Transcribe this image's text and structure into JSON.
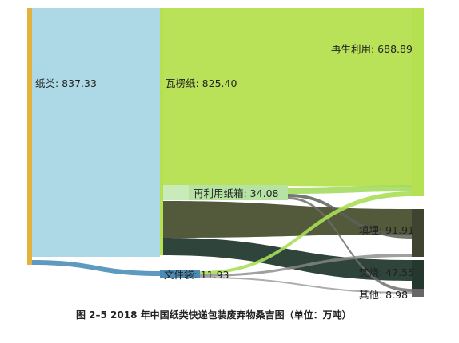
{
  "chart_data": {
    "type": "sankey",
    "caption": "图 2–5 2018 年中国纸类快递包装废弃物桑吉图（单位：万吨）",
    "nodes": [
      {
        "id": "paper",
        "label": "纸类: 837.33",
        "value": 837.33,
        "color": "#add8e6"
      },
      {
        "id": "carton",
        "label": "瓦楞纸: 825.40",
        "value": 825.4,
        "color": "#b5e04f"
      },
      {
        "id": "reuse",
        "label": "再利用纸箱: 34.08",
        "value": 34.08,
        "color": "#b6e3a3"
      },
      {
        "id": "bag",
        "label": "文件袋: 11.93",
        "value": 11.93,
        "color": "#4b8cb6"
      },
      {
        "id": "recycle",
        "label": "再生利用: 688.89",
        "value": 688.89,
        "color": "#b5e04f"
      },
      {
        "id": "landfill",
        "label": "填埋: 91.91",
        "value": 91.91,
        "color": "#3f4430"
      },
      {
        "id": "burn",
        "label": "焚烧: 47.55",
        "value": 47.55,
        "color": "#24382f"
      },
      {
        "id": "other",
        "label": "其他: 8.98",
        "value": 8.98,
        "color": "#666666"
      }
    ],
    "links": [
      {
        "source": "paper",
        "target": "carton",
        "value": 825.4
      },
      {
        "source": "paper",
        "target": "bag",
        "value": 11.93
      },
      {
        "source": "carton",
        "target": "recycle",
        "value": 675.0
      },
      {
        "source": "carton",
        "target": "reuse",
        "value": 34.08
      },
      {
        "source": "carton",
        "target": "landfill",
        "value": 69.0
      },
      {
        "source": "carton",
        "target": "burn",
        "value": 47.32
      },
      {
        "source": "reuse",
        "target": "recycle",
        "value": 12.0
      },
      {
        "source": "reuse",
        "target": "landfill",
        "value": 13.1
      },
      {
        "source": "reuse",
        "target": "other",
        "value": 8.98
      },
      {
        "source": "bag",
        "target": "recycle",
        "value": 1.89
      },
      {
        "source": "bag",
        "target": "landfill",
        "value": 9.81
      },
      {
        "source": "bag",
        "target": "burn",
        "value": 0.23
      }
    ]
  }
}
